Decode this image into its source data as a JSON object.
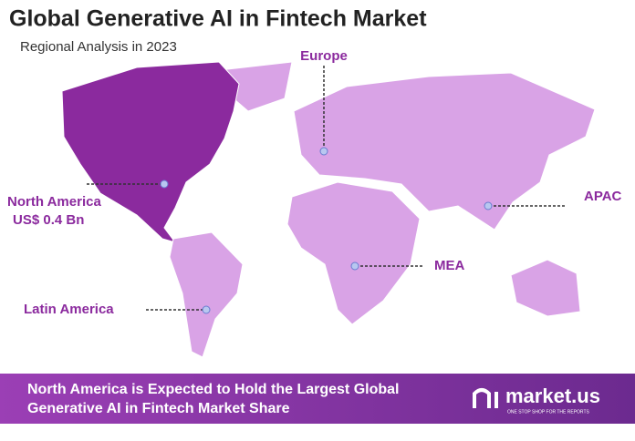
{
  "header": {
    "title": "Global Generative AI in Fintech Market",
    "subtitle": "Regional Analysis in 2023"
  },
  "regions": [
    {
      "label": "Europe"
    },
    {
      "label": "North America",
      "value": "US$ 0.4 Bn"
    },
    {
      "label": "APAC"
    },
    {
      "label": "MEA"
    },
    {
      "label": "Latin America"
    }
  ],
  "footer": {
    "lines": [
      "North America is Expected to Hold the Largest Global",
      "Generative AI in Fintech Market Share"
    ],
    "logo": "market.us",
    "tagline": "ONE STOP SHOP FOR THE REPORTS"
  }
}
